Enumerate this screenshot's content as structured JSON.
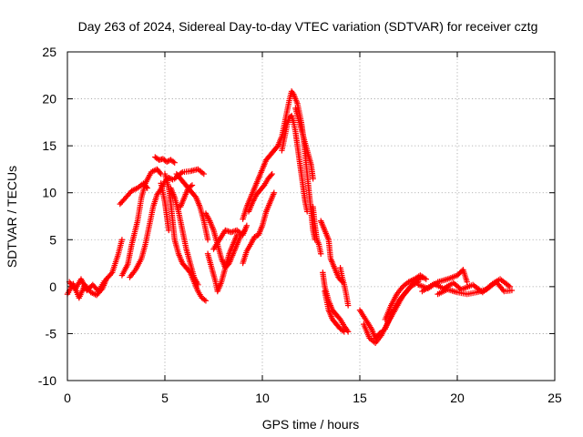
{
  "chart_data": {
    "type": "scatter",
    "title": "Day 263 of 2024, Sidereal Day-to-day VTEC variation (SDTVAR) for receiver cztg",
    "xlabel": "GPS time / hours",
    "ylabel": "SDTVAR / TECUs",
    "xlim": [
      0,
      25
    ],
    "ylim": [
      -10,
      25
    ],
    "xticks": [
      "0",
      "5",
      "10",
      "15",
      "20",
      "25"
    ],
    "yticks": [
      "-10",
      "-5",
      "0",
      "5",
      "10",
      "15",
      "20",
      "25"
    ],
    "grid": true,
    "marker": "+",
    "color": "#ff0000",
    "series": [
      {
        "name": "SDTVAR",
        "segments": [
          [
            [
              0.0,
              -0.8
            ],
            [
              0.3,
              0.3
            ],
            [
              0.6,
              -1.2
            ],
            [
              0.9,
              0.2
            ],
            [
              1.2,
              -0.6
            ],
            [
              1.5,
              -0.9
            ],
            [
              1.8,
              -0.2
            ],
            [
              2.0,
              0.8
            ],
            [
              2.3,
              1.5
            ],
            [
              2.6,
              3.4
            ],
            [
              2.8,
              5.0
            ]
          ],
          [
            [
              0.1,
              0.5
            ],
            [
              0.4,
              -0.3
            ],
            [
              0.7,
              0.8
            ],
            [
              1.0,
              -0.4
            ],
            [
              1.3,
              0.2
            ],
            [
              1.6,
              -0.5
            ],
            [
              1.9,
              0.6
            ]
          ],
          [
            [
              2.8,
              1.2
            ],
            [
              3.1,
              2.4
            ],
            [
              3.3,
              4.5
            ],
            [
              3.6,
              7.0
            ],
            [
              3.8,
              9.5
            ],
            [
              4.0,
              11.0
            ],
            [
              4.3,
              12.2
            ],
            [
              4.6,
              12.5
            ],
            [
              4.8,
              12.0
            ]
          ],
          [
            [
              2.7,
              8.8
            ],
            [
              3.0,
              9.5
            ],
            [
              3.3,
              10.2
            ],
            [
              3.6,
              10.5
            ],
            [
              3.9,
              11.0
            ],
            [
              4.1,
              10.5
            ]
          ],
          [
            [
              3.2,
              1.0
            ],
            [
              3.5,
              1.8
            ],
            [
              3.8,
              3.0
            ],
            [
              4.0,
              4.5
            ],
            [
              4.2,
              6.5
            ],
            [
              4.4,
              8.5
            ],
            [
              4.6,
              9.8
            ],
            [
              4.8,
              10.4
            ],
            [
              5.0,
              11.2
            ],
            [
              5.2,
              11.6
            ],
            [
              5.4,
              11.4
            ]
          ],
          [
            [
              4.5,
              13.8
            ],
            [
              4.7,
              13.5
            ],
            [
              4.9,
              13.6
            ],
            [
              5.1,
              13.3
            ],
            [
              5.3,
              13.5
            ],
            [
              5.5,
              13.2
            ]
          ],
          [
            [
              5.0,
              12.0
            ],
            [
              5.2,
              10.5
            ],
            [
              5.3,
              9.0
            ],
            [
              5.4,
              7.0
            ],
            [
              5.5,
              5.0
            ],
            [
              5.7,
              3.5
            ],
            [
              5.9,
              2.5
            ],
            [
              6.1,
              2.0
            ],
            [
              6.3,
              1.5
            ],
            [
              6.5,
              0.5
            ],
            [
              6.7,
              -0.5
            ],
            [
              6.9,
              -1.2
            ],
            [
              7.1,
              -1.5
            ]
          ],
          [
            [
              4.8,
              11.0
            ],
            [
              5.0,
              9.0
            ],
            [
              5.1,
              7.5
            ],
            [
              5.2,
              6.0
            ]
          ],
          [
            [
              5.3,
              10.5
            ],
            [
              5.5,
              9.5
            ],
            [
              5.7,
              8.0
            ],
            [
              5.9,
              6.0
            ],
            [
              6.1,
              4.0
            ],
            [
              6.3,
              2.5
            ],
            [
              6.5,
              1.0
            ],
            [
              6.7,
              0.2
            ]
          ],
          [
            [
              5.6,
              12.0
            ],
            [
              5.8,
              11.5
            ],
            [
              6.0,
              11.0
            ],
            [
              6.2,
              10.5
            ],
            [
              6.4,
              10.0
            ],
            [
              6.6,
              9.5
            ],
            [
              6.8,
              8.5
            ],
            [
              7.0,
              7.0
            ],
            [
              7.2,
              5.0
            ]
          ],
          [
            [
              5.5,
              11.5
            ],
            [
              5.9,
              12.2
            ],
            [
              6.3,
              12.3
            ],
            [
              6.7,
              12.5
            ],
            [
              7.0,
              12.0
            ]
          ],
          [
            [
              5.8,
              8.5
            ],
            [
              6.0,
              9.5
            ],
            [
              6.2,
              10.5
            ],
            [
              6.4,
              10.8
            ]
          ],
          [
            [
              7.1,
              7.8
            ],
            [
              7.3,
              7.0
            ],
            [
              7.5,
              6.0
            ],
            [
              7.7,
              4.5
            ],
            [
              7.9,
              3.0
            ],
            [
              8.1,
              2.0
            ],
            [
              8.3,
              2.5
            ],
            [
              8.5,
              3.5
            ],
            [
              8.7,
              4.5
            ],
            [
              8.9,
              5.5
            ],
            [
              9.1,
              6.0
            ]
          ],
          [
            [
              7.2,
              3.5
            ],
            [
              7.4,
              2.0
            ],
            [
              7.6,
              0.5
            ],
            [
              7.7,
              -0.5
            ],
            [
              7.9,
              0.5
            ],
            [
              8.1,
              2.0
            ],
            [
              8.3,
              3.5
            ],
            [
              8.5,
              4.5
            ],
            [
              8.7,
              5.5
            ]
          ],
          [
            [
              7.5,
              4.0
            ],
            [
              7.8,
              5.0
            ],
            [
              8.1,
              6.0
            ],
            [
              8.4,
              5.8
            ],
            [
              8.7,
              6.0
            ],
            [
              9.0,
              5.5
            ],
            [
              9.2,
              6.5
            ]
          ],
          [
            [
              9.0,
              2.5
            ],
            [
              9.2,
              3.8
            ],
            [
              9.4,
              4.5
            ],
            [
              9.6,
              5.3
            ],
            [
              9.8,
              5.5
            ],
            [
              10.0,
              6.5
            ],
            [
              10.2,
              8.0
            ],
            [
              10.4,
              9.0
            ],
            [
              10.6,
              10.0
            ]
          ],
          [
            [
              9.0,
              7.2
            ],
            [
              9.2,
              8.5
            ],
            [
              9.4,
              9.5
            ],
            [
              9.6,
              10.5
            ],
            [
              9.8,
              11.5
            ],
            [
              10.0,
              12.5
            ],
            [
              10.2,
              13.5
            ],
            [
              10.4,
              14.0
            ],
            [
              10.6,
              14.5
            ]
          ],
          [
            [
              9.3,
              8.0
            ],
            [
              9.5,
              9.0
            ],
            [
              9.7,
              9.8
            ],
            [
              9.9,
              10.3
            ],
            [
              10.1,
              10.8
            ],
            [
              10.3,
              11.5
            ],
            [
              10.5,
              12.0
            ]
          ],
          [
            [
              10.6,
              14.5
            ],
            [
              10.8,
              15.0
            ],
            [
              11.0,
              16.0
            ],
            [
              11.1,
              17.0
            ],
            [
              11.2,
              18.0
            ],
            [
              11.3,
              19.0
            ],
            [
              11.4,
              20.0
            ],
            [
              11.5,
              20.8
            ],
            [
              11.6,
              20.5
            ],
            [
              11.7,
              20.0
            ],
            [
              11.8,
              19.5
            ],
            [
              11.9,
              18.5
            ],
            [
              12.0,
              17.5
            ],
            [
              12.1,
              16.0
            ],
            [
              12.2,
              14.0
            ],
            [
              12.3,
              12.0
            ],
            [
              12.4,
              10.0
            ],
            [
              12.5,
              8.0
            ],
            [
              12.6,
              6.0
            ],
            [
              12.7,
              5.0
            ]
          ],
          [
            [
              11.0,
              14.5
            ],
            [
              11.1,
              15.5
            ],
            [
              11.2,
              16.5
            ],
            [
              11.3,
              17.5
            ],
            [
              11.4,
              18.0
            ],
            [
              11.5,
              18.2
            ],
            [
              11.6,
              17.5
            ],
            [
              11.7,
              16.5
            ],
            [
              11.8,
              15.0
            ],
            [
              11.9,
              13.5
            ],
            [
              12.0,
              12.0
            ],
            [
              12.1,
              10.5
            ],
            [
              12.2,
              9.0
            ],
            [
              12.3,
              8.0
            ]
          ],
          [
            [
              11.7,
              19.0
            ],
            [
              11.9,
              17.5
            ],
            [
              12.1,
              16.0
            ],
            [
              12.3,
              14.5
            ],
            [
              12.5,
              13.0
            ],
            [
              12.6,
              11.5
            ]
          ],
          [
            [
              12.6,
              8.5
            ],
            [
              12.7,
              6.5
            ],
            [
              12.8,
              5.0
            ],
            [
              12.9,
              4.5
            ],
            [
              13.0,
              3.5
            ]
          ],
          [
            [
              13.0,
              7.0
            ],
            [
              13.2,
              6.0
            ],
            [
              13.4,
              5.0
            ],
            [
              13.5,
              3.0
            ],
            [
              13.7,
              2.0
            ],
            [
              13.9,
              1.0
            ],
            [
              14.1,
              0.5
            ]
          ],
          [
            [
              13.1,
              1.5
            ],
            [
              13.2,
              0.0
            ],
            [
              13.4,
              -1.5
            ],
            [
              13.6,
              -2.5
            ],
            [
              13.8,
              -3.0
            ],
            [
              14.0,
              -3.5
            ],
            [
              14.2,
              -4.2
            ],
            [
              14.4,
              -4.8
            ]
          ],
          [
            [
              13.2,
              -0.5
            ],
            [
              13.4,
              -2.5
            ],
            [
              13.6,
              -3.5
            ],
            [
              13.8,
              -4.0
            ],
            [
              14.0,
              -4.5
            ],
            [
              14.2,
              -4.8
            ]
          ],
          [
            [
              14.0,
              2.0
            ],
            [
              14.1,
              1.0
            ],
            [
              14.2,
              0.2
            ],
            [
              14.3,
              -0.8
            ],
            [
              14.4,
              -2.0
            ]
          ],
          [
            [
              15.0,
              -2.5
            ],
            [
              15.3,
              -3.5
            ],
            [
              15.6,
              -4.5
            ],
            [
              15.8,
              -5.5
            ],
            [
              16.0,
              -5.0
            ],
            [
              16.3,
              -4.5
            ],
            [
              16.6,
              -3.0
            ],
            [
              17.0,
              -1.5
            ],
            [
              17.4,
              -0.5
            ],
            [
              17.8,
              0.5
            ],
            [
              18.2,
              1.0
            ]
          ],
          [
            [
              15.2,
              -4.0
            ],
            [
              15.5,
              -5.5
            ],
            [
              15.8,
              -6.0
            ],
            [
              16.1,
              -5.2
            ],
            [
              16.4,
              -4.0
            ],
            [
              16.8,
              -2.5
            ],
            [
              17.2,
              -1.0
            ],
            [
              17.6,
              0.0
            ],
            [
              18.0,
              0.5
            ]
          ],
          [
            [
              16.3,
              -3.5
            ],
            [
              16.6,
              -2.0
            ],
            [
              16.9,
              -0.8
            ],
            [
              17.2,
              0.0
            ],
            [
              17.5,
              0.5
            ],
            [
              17.8,
              0.8
            ],
            [
              18.1,
              1.2
            ],
            [
              18.4,
              0.8
            ]
          ],
          [
            [
              18.0,
              0.2
            ],
            [
              18.5,
              -0.2
            ],
            [
              19.0,
              0.5
            ],
            [
              19.5,
              0.8
            ],
            [
              20.0,
              1.2
            ],
            [
              20.3,
              1.8
            ],
            [
              20.5,
              0.5
            ]
          ],
          [
            [
              18.2,
              -0.5
            ],
            [
              18.8,
              0.3
            ],
            [
              19.3,
              -0.2
            ],
            [
              19.8,
              0.4
            ],
            [
              20.2,
              -0.3
            ],
            [
              20.8,
              0.2
            ],
            [
              21.3,
              -0.6
            ],
            [
              21.8,
              0.3
            ],
            [
              22.2,
              0.8
            ],
            [
              22.7,
              0.0
            ]
          ],
          [
            [
              19.0,
              -0.8
            ],
            [
              19.5,
              -0.3
            ],
            [
              20.0,
              -0.6
            ],
            [
              20.5,
              -0.8
            ],
            [
              21.0,
              -0.6
            ],
            [
              21.5,
              -0.3
            ],
            [
              22.0,
              0.5
            ],
            [
              22.4,
              -0.5
            ],
            [
              22.8,
              -0.4
            ]
          ]
        ]
      }
    ]
  }
}
